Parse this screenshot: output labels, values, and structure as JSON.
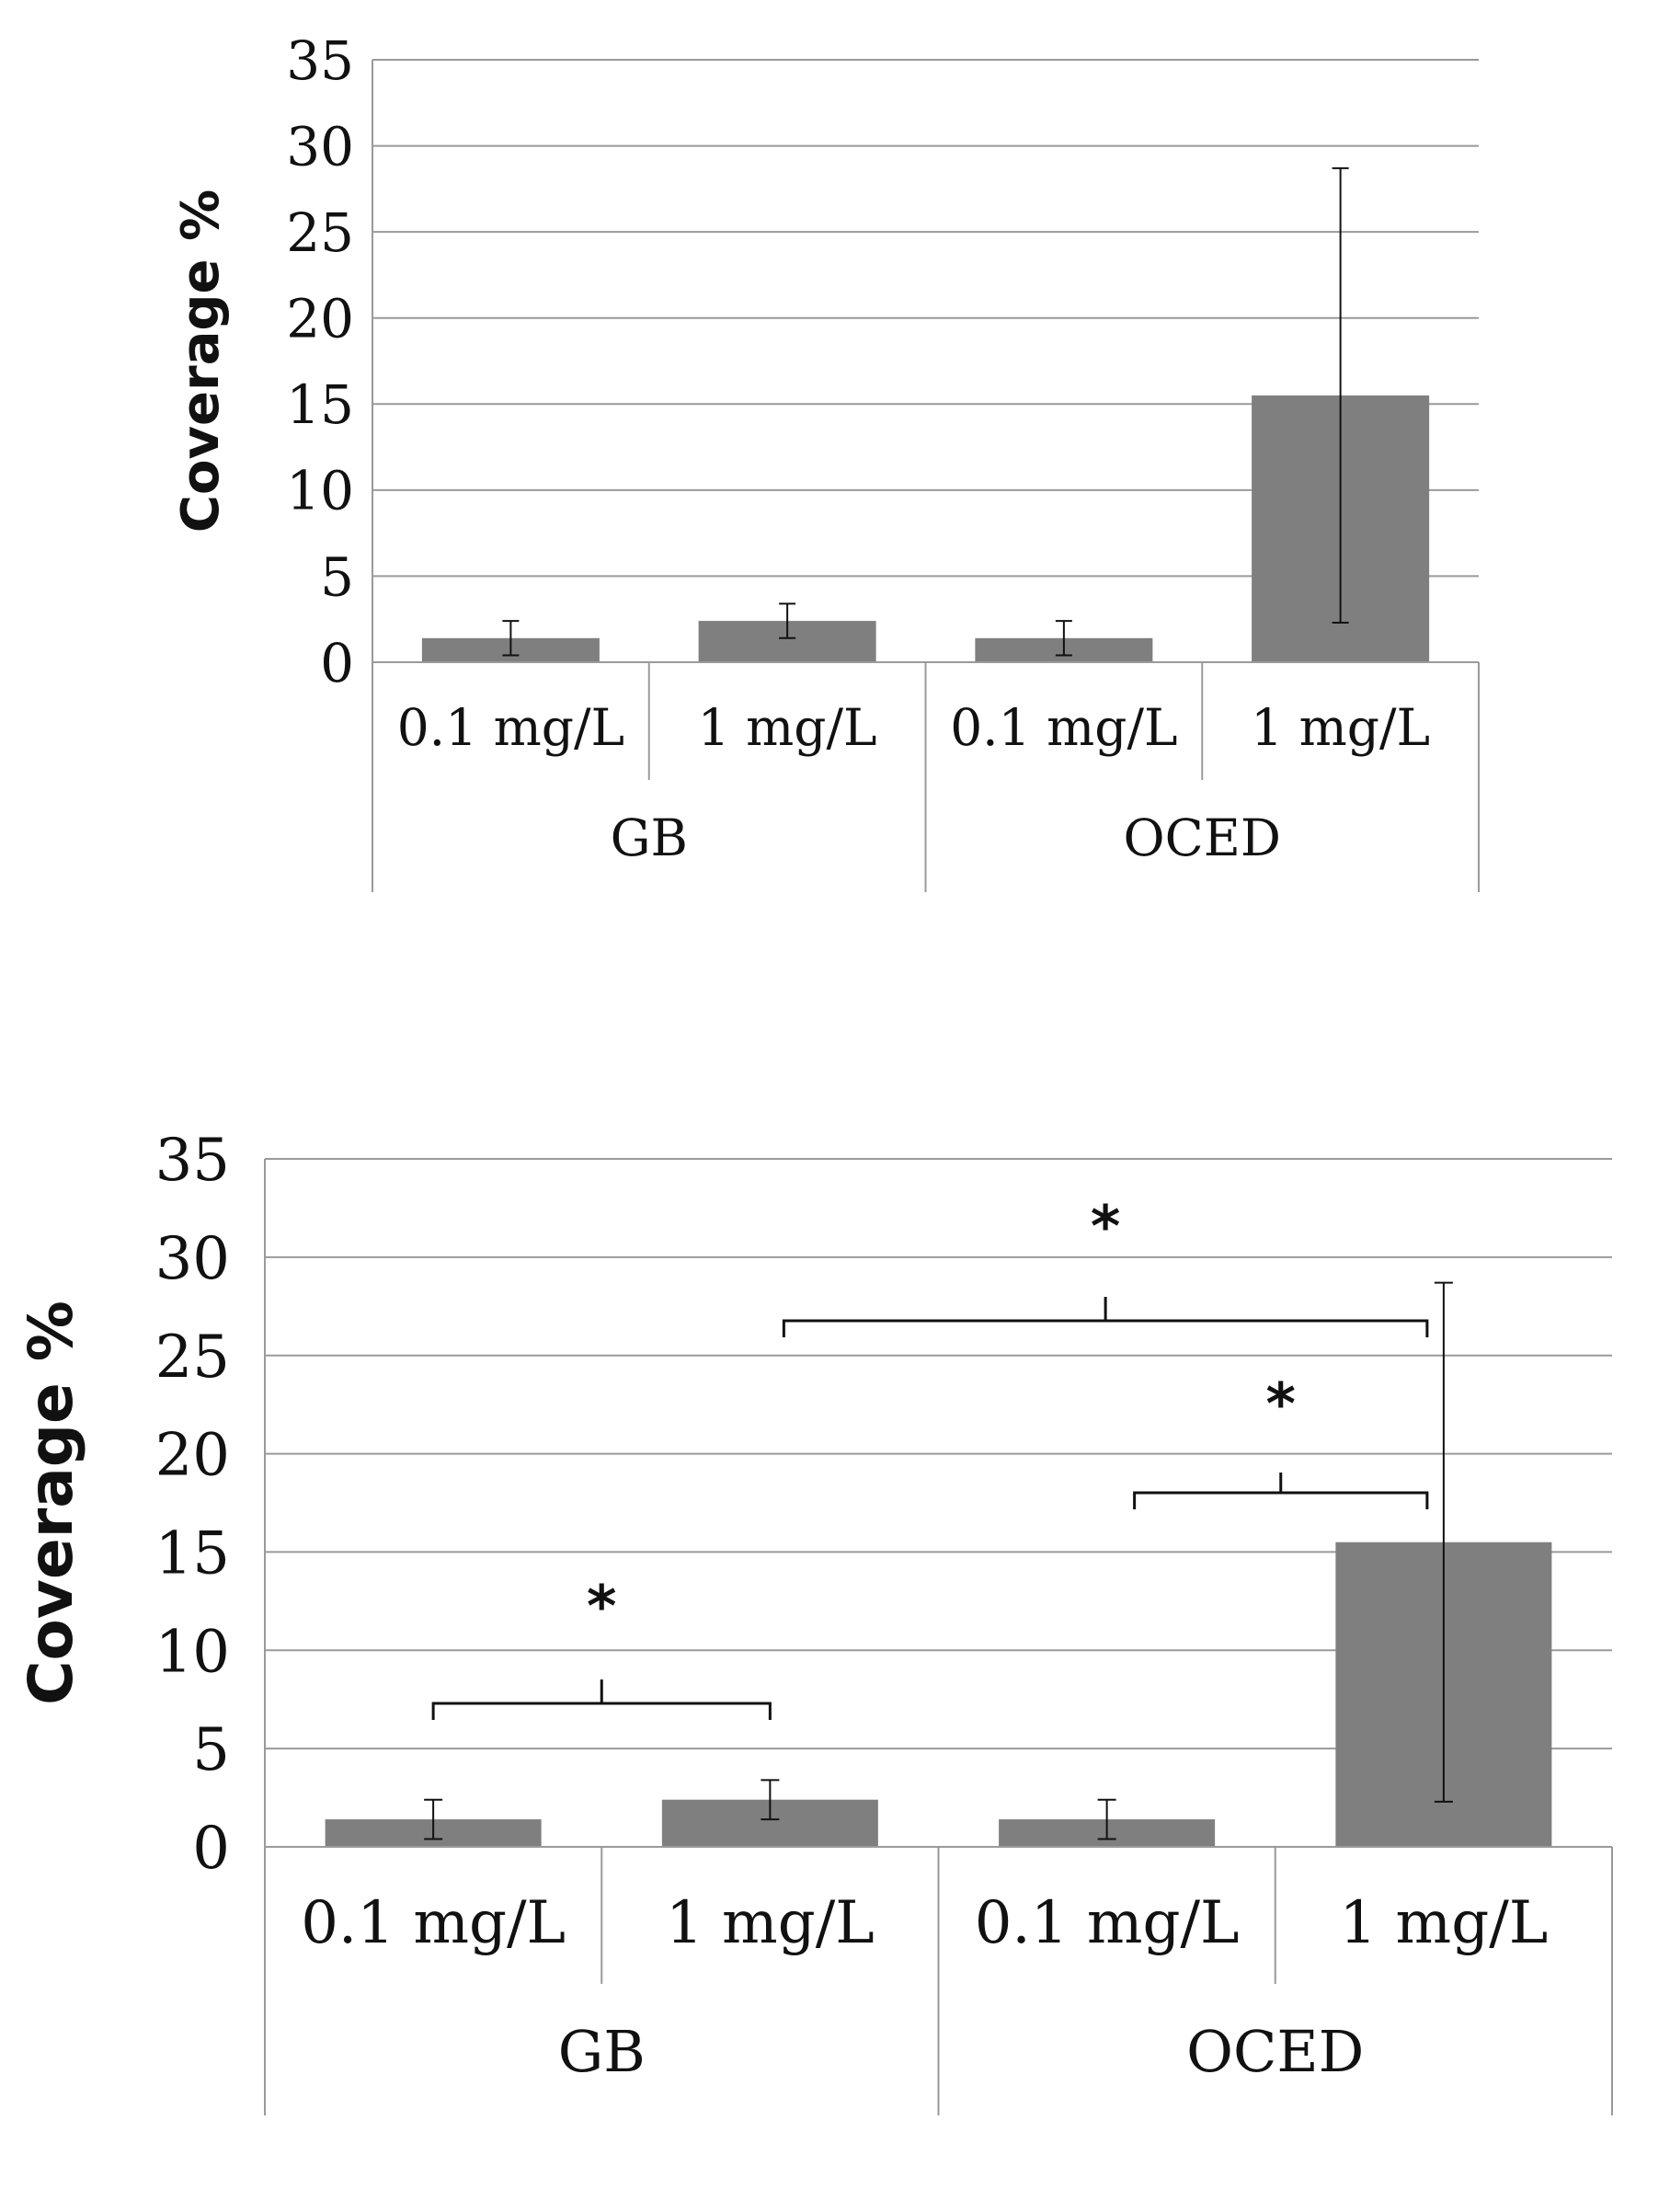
{
  "chart_data": [
    {
      "type": "bar",
      "title": "",
      "xlabel": "",
      "ylabel": "Coverage %",
      "ylim": [
        0,
        35
      ],
      "yticks": [
        0,
        5,
        10,
        15,
        20,
        25,
        30,
        35
      ],
      "groups": [
        "GB",
        "OCED"
      ],
      "categories": [
        "0.1 mg/L",
        "1 mg/L",
        "0.1 mg/L",
        "1 mg/L"
      ],
      "values": [
        1.4,
        2.4,
        1.4,
        15.5
      ],
      "error": [
        1.0,
        1.0,
        1.0,
        13.2
      ],
      "grid": true,
      "bar_color": "#7f7f7f",
      "significance": []
    },
    {
      "type": "bar",
      "title": "",
      "xlabel": "",
      "ylabel": "Coverage %",
      "ylim": [
        0,
        35
      ],
      "yticks": [
        0,
        5,
        10,
        15,
        20,
        25,
        30,
        35
      ],
      "groups": [
        "GB",
        "OCED"
      ],
      "categories": [
        "0.1 mg/L",
        "1 mg/L",
        "0.1 mg/L",
        "1 mg/L"
      ],
      "values": [
        1.4,
        2.4,
        1.4,
        15.5
      ],
      "error": [
        1.0,
        1.0,
        1.0,
        13.2
      ],
      "grid": true,
      "bar_color": "#7f7f7f",
      "significance": [
        {
          "from": 0,
          "to": 1,
          "label": "*"
        },
        {
          "from": 1,
          "to": 3,
          "label": "*"
        },
        {
          "from": 2,
          "to": 3,
          "label": "*"
        }
      ]
    }
  ]
}
